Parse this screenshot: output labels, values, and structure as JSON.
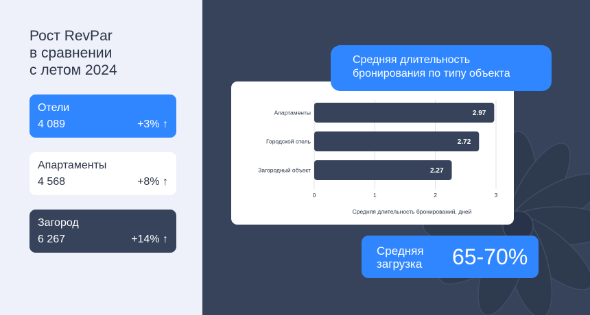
{
  "left": {
    "title_lines": [
      "Рост RevPar",
      "в сравнении",
      "с летом 2024"
    ],
    "cards": [
      {
        "label": "Отели",
        "value": "4 089",
        "change": "+3% ↑"
      },
      {
        "label": "Апартаменты",
        "value": "4 568",
        "change": "+8% ↑"
      },
      {
        "label": "Загород",
        "value": "6 267",
        "change": "+14% ↑"
      }
    ]
  },
  "chart_title_lines": [
    "Средняя длительность",
    "бронирования по типу объекта"
  ],
  "load": {
    "label_lines": [
      "Средняя",
      "загрузка"
    ],
    "value": "65-70%"
  },
  "colors": {
    "accent": "#2f86ff",
    "dark": "#36435a",
    "panel": "#eef1fa",
    "text": "#2a3346"
  },
  "chart_data": {
    "type": "bar",
    "orientation": "horizontal",
    "categories": [
      "Апартаменты",
      "Городской отель",
      "Загородный объект"
    ],
    "values": [
      2.97,
      2.72,
      2.27
    ],
    "value_labels": [
      "2.97",
      "2.72",
      "2.27"
    ],
    "xlabel": "Средняя длительность бронирований, дней",
    "xlim": [
      0,
      3
    ],
    "xticks": [
      "0",
      "1",
      "2",
      "3"
    ],
    "grid": "vertical",
    "bar_color": "#36435a"
  }
}
